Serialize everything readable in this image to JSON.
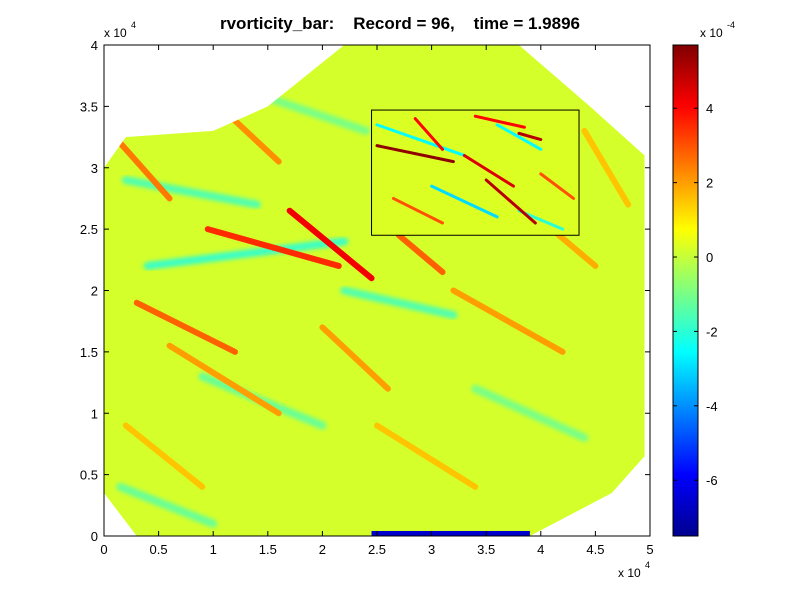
{
  "chart_data": [
    {
      "type": "heatmap",
      "title": "rvorticity_bar:    Record = 96,    time = 1.9896",
      "xlim": [
        0,
        50000
      ],
      "ylim": [
        0,
        40000
      ],
      "x_ticks": [
        "0",
        "0.5",
        "1",
        "1.5",
        "2",
        "2.5",
        "3",
        "3.5",
        "4",
        "4.5",
        "5"
      ],
      "y_ticks": [
        "0",
        "0.5",
        "1",
        "1.5",
        "2",
        "2.5",
        "3",
        "3.5",
        "4"
      ],
      "x_multiplier": {
        "base": "x 10",
        "exp": "4"
      },
      "y_multiplier": {
        "base": "x 10",
        "exp": "4"
      },
      "grid": false,
      "colormap": "jet",
      "domain_note_visible": false,
      "inset_region": {
        "x": [
          24500,
          43500
        ],
        "y": [
          24500,
          34700
        ]
      },
      "dominant_value": 2e-05,
      "streaks": [
        {
          "x": [
            17000,
            24500
          ],
          "y": [
            26500,
            21000
          ],
          "value": 0.00042
        },
        {
          "x": [
            9500,
            21500
          ],
          "y": [
            25000,
            22000
          ],
          "value": 0.00035
        },
        {
          "x": [
            27000,
            31000
          ],
          "y": [
            24500,
            21500
          ],
          "value": 0.00028
        },
        {
          "x": [
            1500,
            6000
          ],
          "y": [
            32000,
            27500
          ],
          "value": 0.00025
        },
        {
          "x": [
            10000,
            16000
          ],
          "y": [
            35500,
            30500
          ],
          "value": 0.00022
        },
        {
          "x": [
            3000,
            12000
          ],
          "y": [
            19000,
            15000
          ],
          "value": 0.00028
        },
        {
          "x": [
            6000,
            16000
          ],
          "y": [
            15500,
            10000
          ],
          "value": 0.0002
        },
        {
          "x": [
            20000,
            26000
          ],
          "y": [
            17000,
            12000
          ],
          "value": 0.0002
        },
        {
          "x": [
            32000,
            42000
          ],
          "y": [
            20000,
            15000
          ],
          "value": 0.0002
        },
        {
          "x": [
            37000,
            45000
          ],
          "y": [
            28000,
            22000
          ],
          "value": 0.00018
        },
        {
          "x": [
            44000,
            48000
          ],
          "y": [
            33000,
            27000
          ],
          "value": 0.00015
        },
        {
          "x": [
            2000,
            9000
          ],
          "y": [
            9000,
            4000
          ],
          "value": 0.00015
        },
        {
          "x": [
            25000,
            34000
          ],
          "y": [
            9000,
            4000
          ],
          "value": 0.00015
        }
      ],
      "troughs": [
        {
          "x": [
            4000,
            22000
          ],
          "y": [
            22000,
            24000
          ],
          "value": -0.00018
        },
        {
          "x": [
            2000,
            14000
          ],
          "y": [
            29000,
            27000
          ],
          "value": -0.00015
        },
        {
          "x": [
            9000,
            20000
          ],
          "y": [
            13000,
            9000
          ],
          "value": -0.00012
        },
        {
          "x": [
            22000,
            32000
          ],
          "y": [
            20000,
            18000
          ],
          "value": -0.00015
        },
        {
          "x": [
            34000,
            44000
          ],
          "y": [
            12000,
            8000
          ],
          "value": -0.0001
        },
        {
          "x": [
            14000,
            24000
          ],
          "y": [
            36000,
            33000
          ],
          "value": -0.0001
        },
        {
          "x": [
            1500,
            10000
          ],
          "y": [
            4000,
            1000
          ],
          "value": -0.00012
        }
      ],
      "inset_streaks": [
        {
          "x": [
            25000,
            32000
          ],
          "y": [
            31800,
            30500
          ],
          "value": 0.00055
        },
        {
          "x": [
            28500,
            31000
          ],
          "y": [
            34000,
            31500
          ],
          "value": 0.0004
        },
        {
          "x": [
            33000,
            37500
          ],
          "y": [
            31000,
            28500
          ],
          "value": 0.00045
        },
        {
          "x": [
            35000,
            39500
          ],
          "y": [
            29000,
            25500
          ],
          "value": 0.0005
        },
        {
          "x": [
            34000,
            38500
          ],
          "y": [
            34200,
            33300
          ],
          "value": 0.0004
        },
        {
          "x": [
            38000,
            40000
          ],
          "y": [
            32800,
            32300
          ],
          "value": 0.0005
        },
        {
          "x": [
            26500,
            31000
          ],
          "y": [
            27500,
            25500
          ],
          "value": 0.0003
        },
        {
          "x": [
            40000,
            43000
          ],
          "y": [
            29500,
            27500
          ],
          "value": 0.0003
        }
      ],
      "inset_troughs": [
        {
          "x": [
            25000,
            33000
          ],
          "y": [
            33500,
            31000
          ],
          "value": -0.00025
        },
        {
          "x": [
            30000,
            36000
          ],
          "y": [
            28500,
            26000
          ],
          "value": -0.0003
        },
        {
          "x": [
            38000,
            42000
          ],
          "y": [
            26500,
            25000
          ],
          "value": -0.0002
        },
        {
          "x": [
            36000,
            40000
          ],
          "y": [
            33500,
            31500
          ],
          "value": -0.00025
        }
      ],
      "boundary_low": {
        "x": [
          24500,
          39000
        ],
        "y": [
          0,
          0
        ],
        "value": -0.00065
      }
    },
    {
      "type": "colorbar",
      "range": [
        -0.00075,
        0.00057
      ],
      "ticks": [
        "-6",
        "-4",
        "-2",
        "0",
        "2",
        "4"
      ],
      "tick_values": [
        -6,
        -4,
        -2,
        0,
        2,
        4
      ],
      "scale_exponent": -4,
      "multiplier": {
        "base": "x 10",
        "exp": "-4"
      }
    }
  ]
}
